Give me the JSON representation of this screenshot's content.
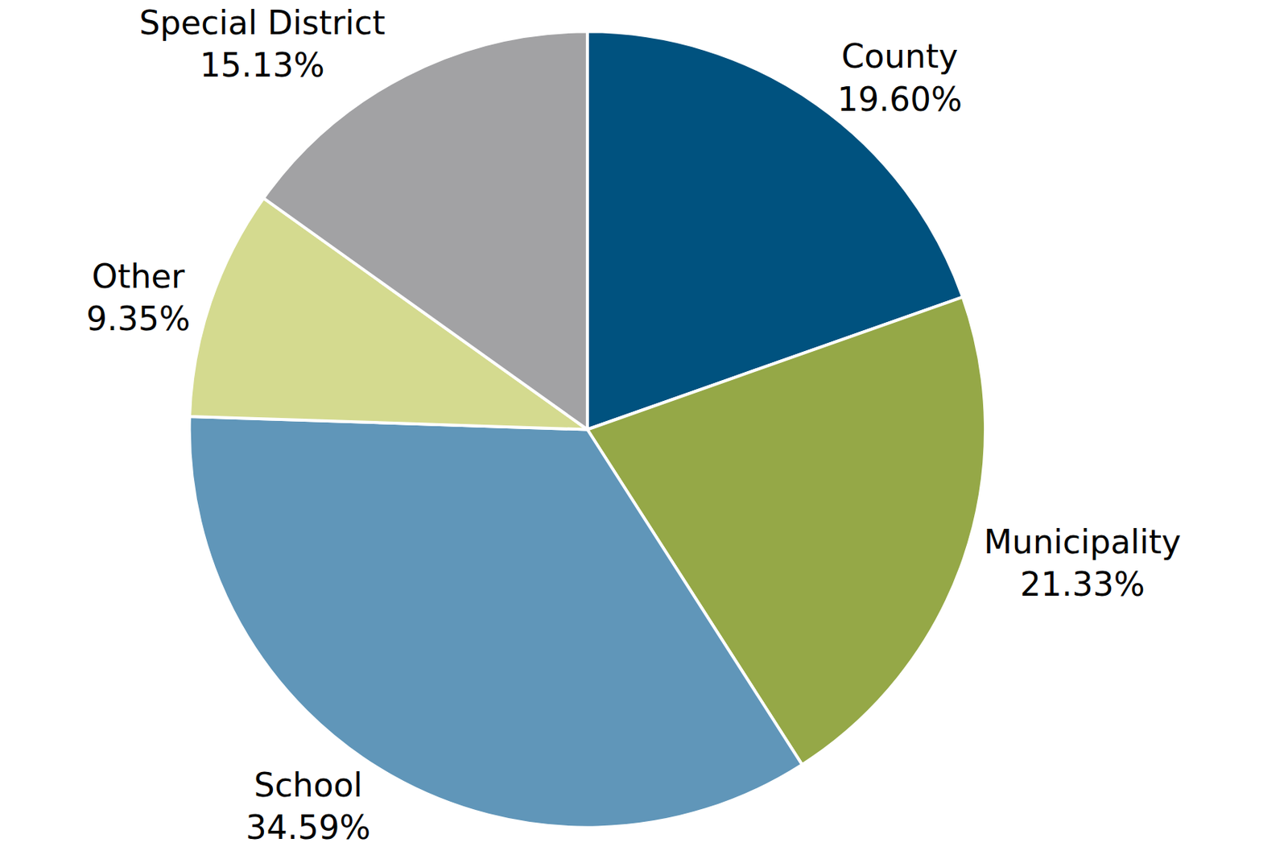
{
  "chart_data": {
    "type": "pie",
    "categories": [
      "County",
      "Municipality",
      "School",
      "Other",
      "Special District"
    ],
    "values": [
      19.6,
      21.33,
      34.59,
      9.35,
      15.13
    ],
    "value_labels": [
      "19.60%",
      "21.33%",
      "34.59%",
      "9.35%",
      "15.13%"
    ],
    "colors": [
      "#00527f",
      "#95a847",
      "#6096b9",
      "#d4da8f",
      "#a2a2a4"
    ],
    "data_labels": true
  }
}
